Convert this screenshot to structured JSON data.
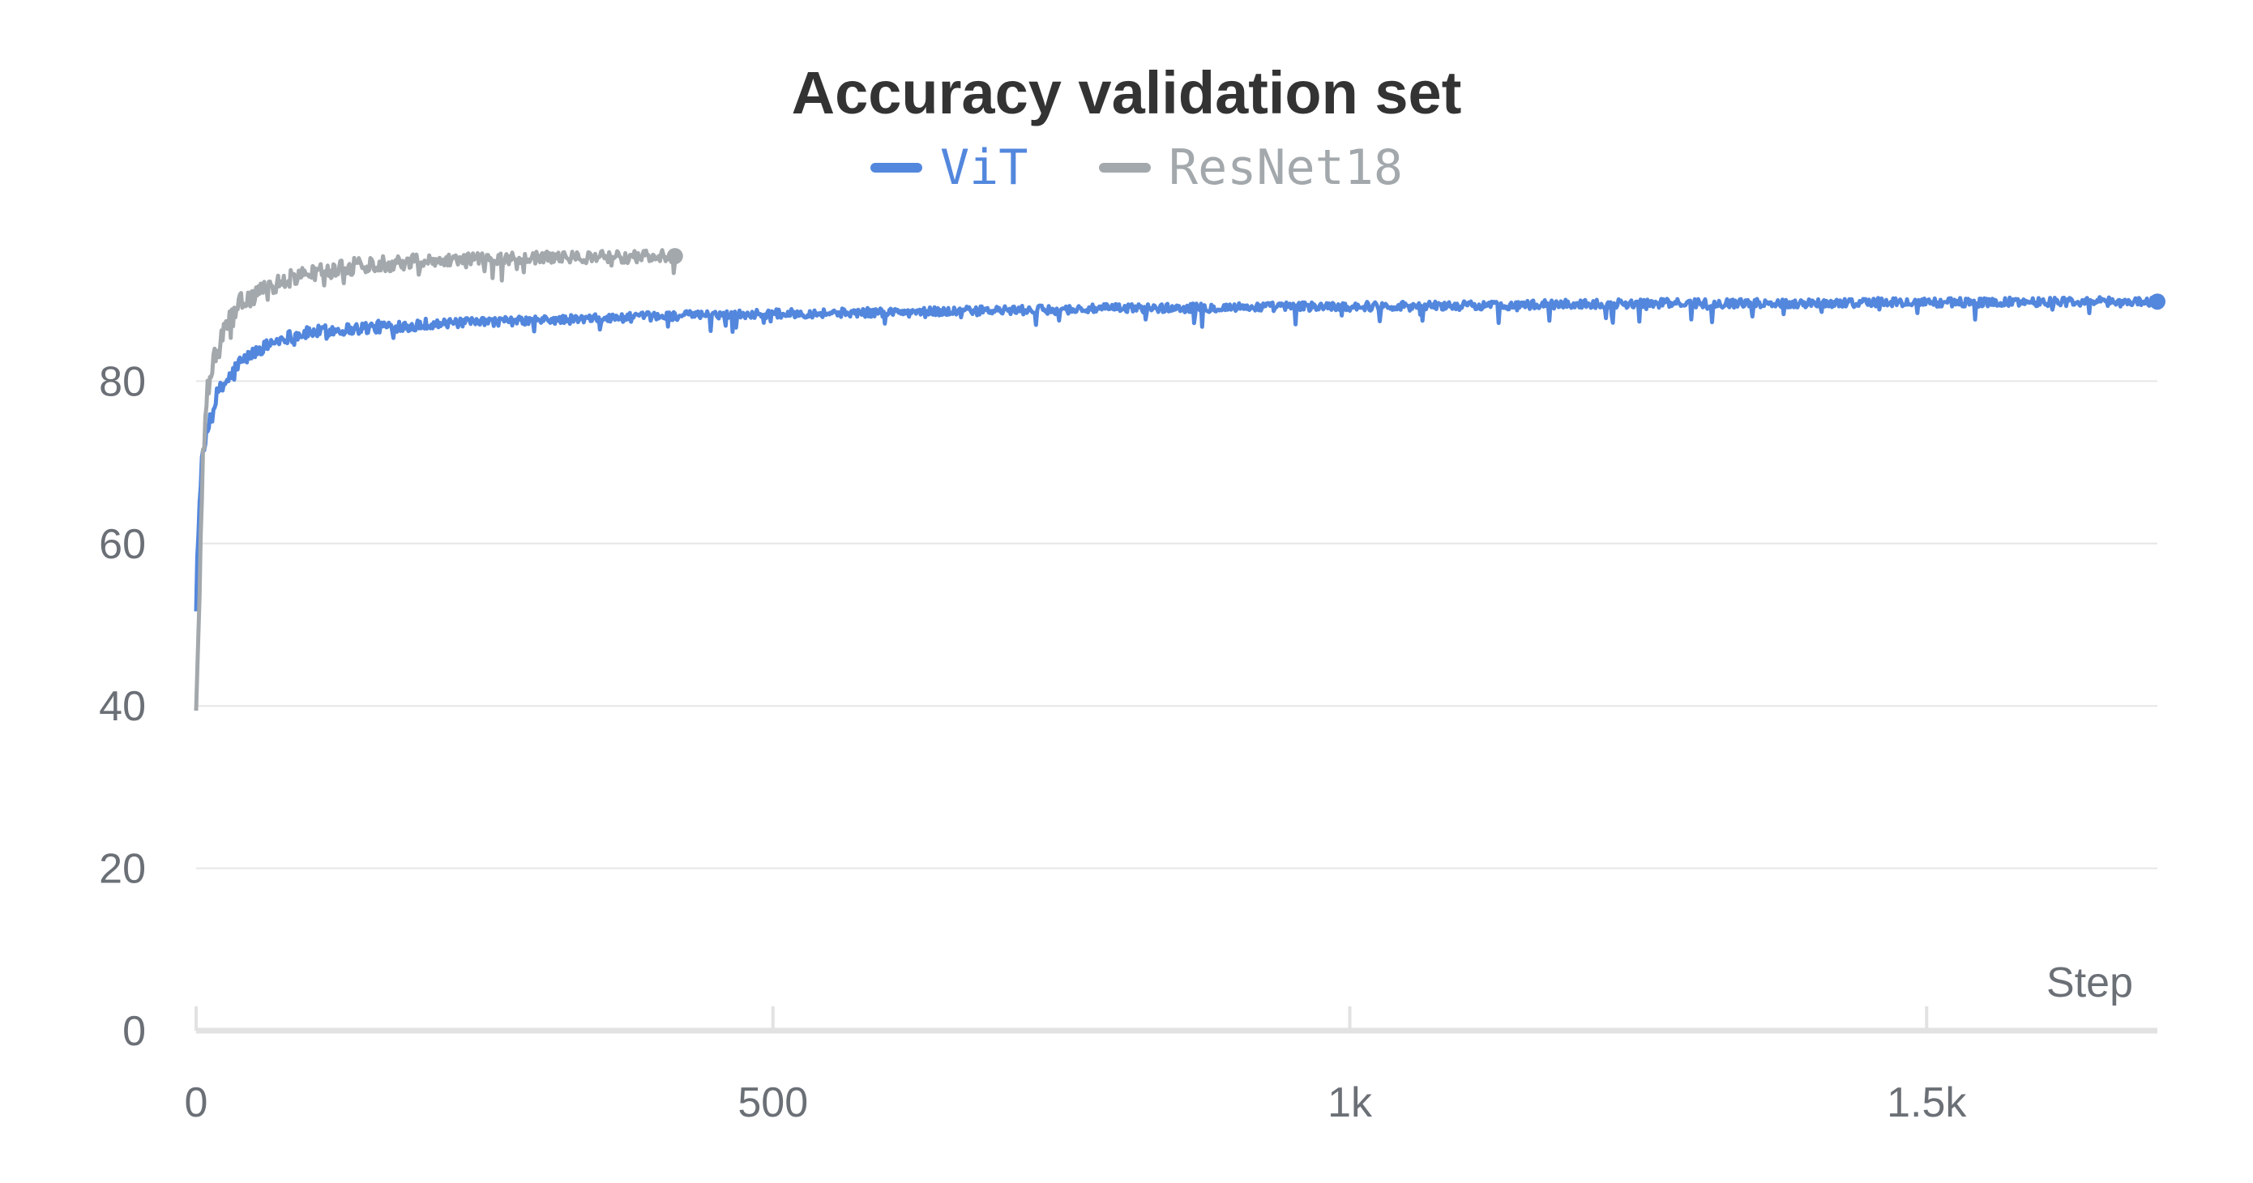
{
  "chart_data": {
    "type": "line",
    "title": "Accuracy validation set",
    "xlabel": "Step",
    "ylabel": "",
    "xlim": [
      0,
      1700
    ],
    "ylim": [
      0,
      100
    ],
    "x_ticks": [
      0,
      500,
      1000,
      1500
    ],
    "x_tick_labels": [
      "0",
      "500",
      "1k",
      "1.5k"
    ],
    "y_ticks": [
      0,
      20,
      40,
      60,
      80
    ],
    "y_tick_labels": [
      "0",
      "20",
      "40",
      "60",
      "80"
    ],
    "grid": true,
    "legend_position": "top-center",
    "series": [
      {
        "name": "ViT",
        "color": "#5387dd",
        "x": [
          0,
          2,
          4,
          6,
          8,
          10,
          12,
          15,
          18,
          22,
          26,
          30,
          35,
          40,
          50,
          60,
          70,
          80,
          100,
          120,
          140,
          160,
          180,
          200,
          250,
          300,
          350,
          400,
          450,
          500,
          550,
          600,
          650,
          700,
          750,
          800,
          850,
          900,
          950,
          1000,
          1050,
          1100,
          1150,
          1200,
          1250,
          1300,
          1350,
          1400,
          1450,
          1500,
          1550,
          1600,
          1650,
          1700
        ],
        "y": [
          54,
          62,
          68,
          71,
          72.5,
          74,
          75.5,
          77,
          78,
          79,
          80,
          80.5,
          81.5,
          82.5,
          83.5,
          84.3,
          85,
          85.5,
          86,
          86.3,
          86.5,
          86.7,
          86.9,
          87,
          87.3,
          87.5,
          87.7,
          88,
          88.2,
          88.3,
          88.4,
          88.5,
          88.6,
          88.7,
          88.8,
          89,
          89,
          89.1,
          89.2,
          89.2,
          89.3,
          89.3,
          89.4,
          89.5,
          89.6,
          89.6,
          89.6,
          89.6,
          89.7,
          89.7,
          89.7,
          89.8,
          89.8,
          89.8
        ]
      },
      {
        "name": "ResNet18",
        "color": "#a3a8ac",
        "x": [
          0,
          2,
          4,
          6,
          8,
          10,
          12,
          15,
          18,
          22,
          26,
          30,
          35,
          40,
          50,
          60,
          70,
          80,
          100,
          120,
          140,
          160,
          180,
          200,
          250,
          300,
          350,
          400,
          415
        ],
        "y": [
          40,
          48,
          60,
          70,
          76,
          78.5,
          80.5,
          82,
          83.5,
          85,
          86.5,
          87.5,
          88.5,
          89.5,
          90.5,
          91.3,
          92,
          92.6,
          93.3,
          93.8,
          94.2,
          94.5,
          94.7,
          94.9,
          95.1,
          95.2,
          95.3,
          95.4,
          95.4
        ]
      }
    ]
  }
}
